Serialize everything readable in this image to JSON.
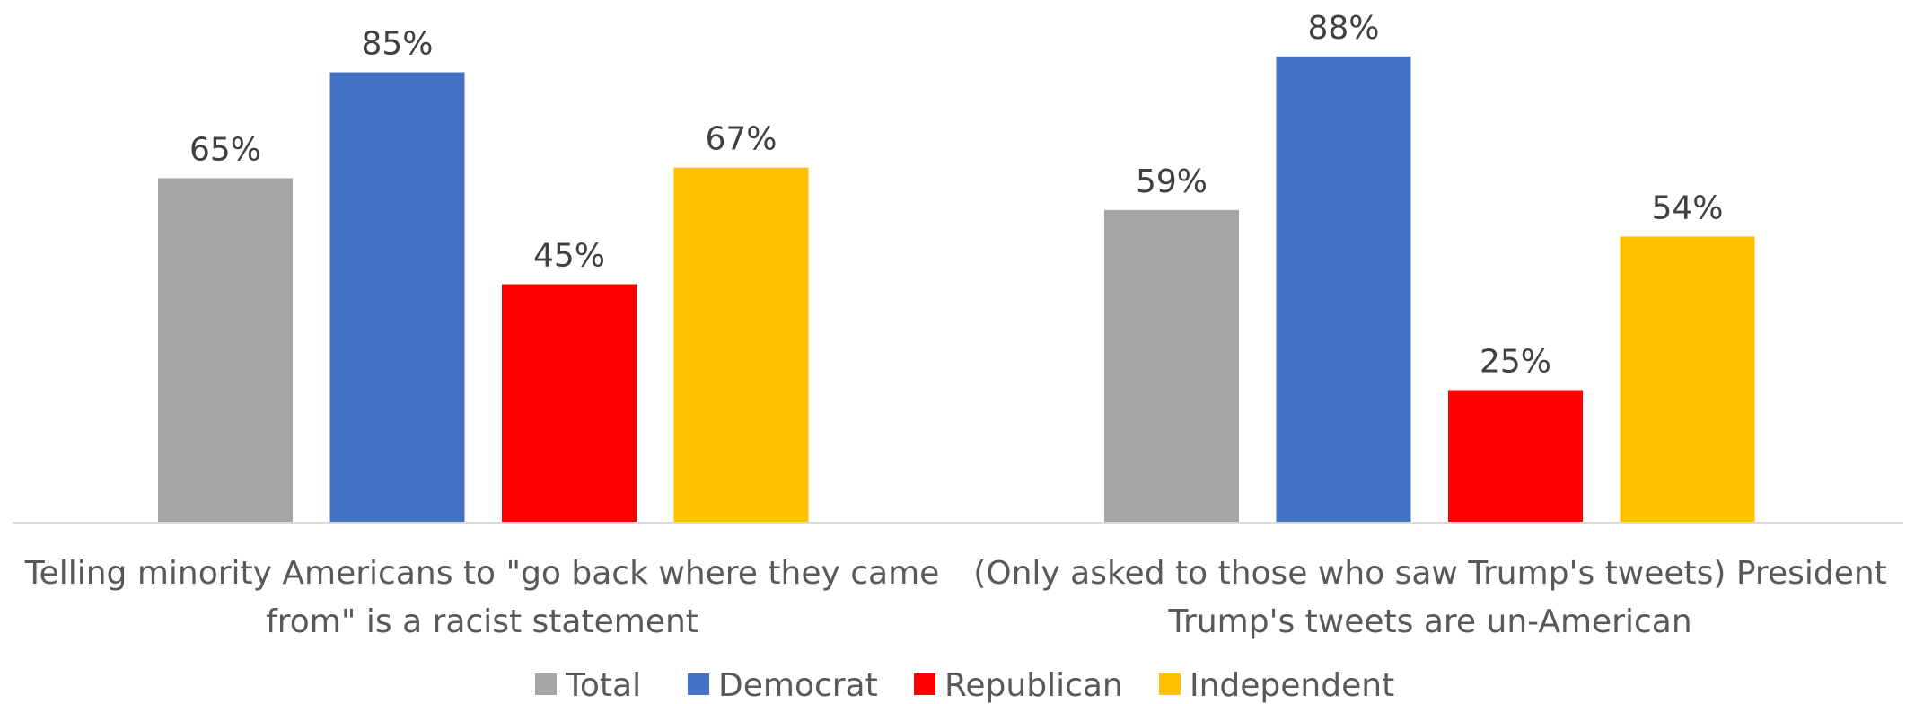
{
  "chart_data": {
    "type": "bar",
    "categories": [
      [
        "Telling minority Americans to \"go back where they came",
        "from\" is a racist statement"
      ],
      [
        "(Only asked to those who saw Trump's tweets) President",
        "Trump's tweets are un-American"
      ]
    ],
    "series": [
      {
        "name": "Total",
        "color": "#A5A5A5",
        "values": [
          65,
          59
        ],
        "labels": [
          "65%",
          "59%"
        ]
      },
      {
        "name": "Democrat",
        "color": "#4472C4",
        "values": [
          85,
          88
        ],
        "labels": [
          "85%",
          "88%"
        ]
      },
      {
        "name": "Republican",
        "color": "#FF0000",
        "values": [
          45,
          25
        ],
        "labels": [
          "45%",
          "25%"
        ]
      },
      {
        "name": "Independent",
        "color": "#FFC000",
        "values": [
          67,
          54
        ],
        "labels": [
          "67%",
          "54%"
        ]
      }
    ],
    "unit": "%",
    "ylim": [
      0,
      100
    ],
    "grid": false,
    "legend": "bottom-center"
  }
}
